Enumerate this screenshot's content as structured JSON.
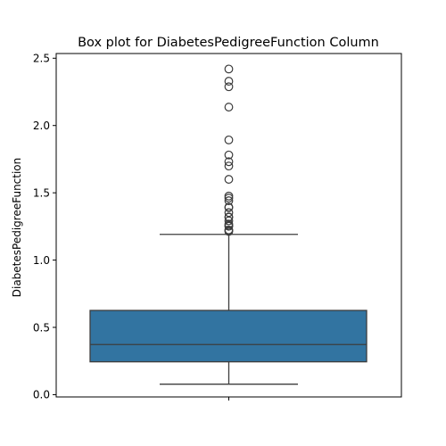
{
  "chart_data": {
    "type": "box",
    "title": "Box plot for DiabetesPedigreeFunction Column",
    "xlabel": "",
    "ylabel": "DiabetesPedigreeFunction",
    "ylim": [
      -0.017,
      2.535
    ],
    "yticks": [
      0.0,
      0.5,
      1.0,
      1.5,
      2.0,
      2.5
    ],
    "ytick_labels": [
      "0.0",
      "0.5",
      "1.0",
      "1.5",
      "2.0",
      "2.5"
    ],
    "grid": false,
    "legend": "none",
    "box": {
      "whisker_low": 0.078,
      "q1": 0.244,
      "median": 0.3725,
      "q3": 0.626,
      "whisker_high": 1.191
    },
    "outliers": [
      2.42,
      2.329,
      2.288,
      2.137,
      1.893,
      1.781,
      1.731,
      1.699,
      1.6,
      1.476,
      1.461,
      1.441,
      1.39,
      1.394,
      1.353,
      1.321,
      1.318,
      1.292,
      1.268,
      1.258,
      1.251,
      1.224,
      1.222,
      1.213
    ],
    "colors": {
      "box_fill": "#3274a1",
      "line": "#3d3d3d"
    }
  }
}
